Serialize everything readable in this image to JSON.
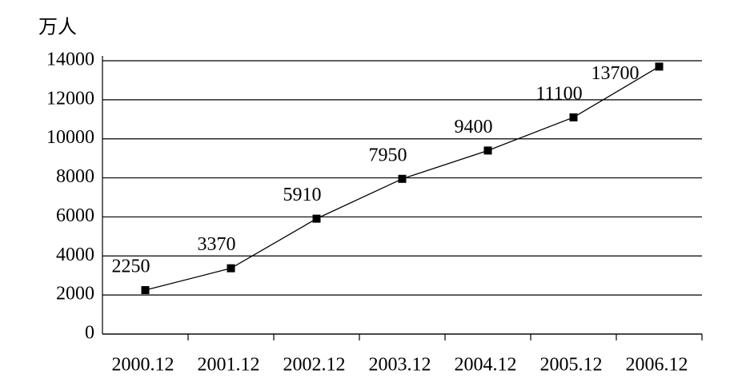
{
  "chart_data": {
    "type": "line",
    "y_label": "万人",
    "categories": [
      "2000.12",
      "2001.12",
      "2002.12",
      "2003.12",
      "2004.12",
      "2005.12",
      "2006.12"
    ],
    "values": [
      2250,
      3370,
      5910,
      7950,
      9400,
      11100,
      13700
    ],
    "color": "#000000",
    "ylim": [
      0,
      14000
    ],
    "yticks": [
      0,
      2000,
      4000,
      6000,
      8000,
      10000,
      12000,
      14000
    ],
    "grid": true
  }
}
